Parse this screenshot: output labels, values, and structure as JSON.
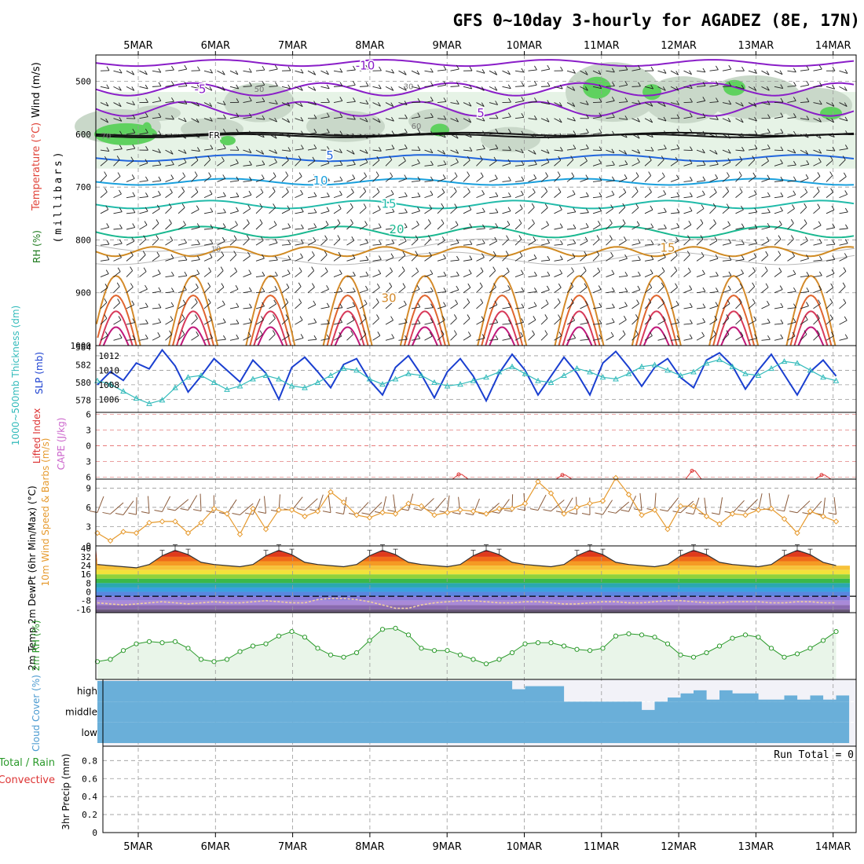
{
  "title": "GFS 0~10day 3-hourly for AGADEZ (8E, 17N)",
  "date_labels": [
    "5MAR",
    "6MAR",
    "7MAR",
    "8MAR",
    "9MAR",
    "10MAR",
    "11MAR",
    "12MAR",
    "13MAR",
    "14MAR"
  ],
  "colors": {
    "frame": "#000000",
    "grid": "#999999",
    "rh_light": "#e6f3e6",
    "rh_mid": "#c9d8c9",
    "rh_dark": "#5fd15f",
    "slp": "#1a3fd0",
    "thickness": "#33bbbb",
    "wind": "#e69a2e",
    "barb": "#8a5a3a",
    "rh2m": "#2b9a2b",
    "rh2m_fill": "#e9f5e9",
    "cloud": "#6aafd9",
    "cloud_clear": "#f2f2f8",
    "li": "#dd3333",
    "cape": "#cc66cc"
  },
  "chart_data": [
    {
      "type": "heatmap",
      "panel": "upper-air",
      "ylabel_parts": [
        "Wind (m/s)",
        "Temperature (°C)",
        "RH (%)"
      ],
      "ylabel_sub": "(millibars)",
      "yticks": [
        500,
        600,
        700,
        800,
        900,
        1000
      ],
      "ylim": [
        450,
        1000
      ],
      "isotherm_labels": [
        {
          "value": "-10",
          "level": 470
        },
        {
          "value": "-5",
          "level": 515
        },
        {
          "value": "5",
          "level": 560
        },
        {
          "value": "FR",
          "level": 600
        },
        {
          "value": "5",
          "level": 640
        },
        {
          "value": "10",
          "level": 688
        },
        {
          "value": "15",
          "level": 732
        },
        {
          "value": "20",
          "level": 780
        },
        {
          "value": "15",
          "level": 815
        },
        {
          "value": "30",
          "level": 910
        }
      ],
      "rh_labels": [
        "30",
        "50",
        "60",
        "70",
        "10"
      ]
    },
    {
      "type": "line",
      "panel": "slp-thickness",
      "ylabel_left": "1000~500mb Thickness (dm)",
      "ylabel_right": "SLP (mb)",
      "yticks_left": [
        578,
        580,
        582,
        584
      ],
      "yticks_right": [
        1006,
        1008,
        1010,
        1012
      ],
      "ylim_right": [
        1004.2,
        1013.4
      ],
      "series": [
        {
          "name": "SLP (mb)",
          "values": [
            1008.0,
            1009.8,
            1008.6,
            1011.0,
            1010.2,
            1012.8,
            1010.6,
            1007.0,
            1009.2,
            1011.6,
            1010.0,
            1008.4,
            1011.4,
            1009.6,
            1006.0,
            1010.4,
            1011.8,
            1009.8,
            1007.6,
            1010.8,
            1011.6,
            1008.6,
            1006.6,
            1010.4,
            1012.0,
            1009.4,
            1006.2,
            1009.8,
            1011.6,
            1009.2,
            1005.8,
            1009.6,
            1012.2,
            1010.0,
            1006.6,
            1009.2,
            1011.8,
            1009.6,
            1006.6,
            1011.0,
            1012.6,
            1010.4,
            1007.8,
            1010.4,
            1011.6,
            1009.0,
            1007.6,
            1011.4,
            1012.4,
            1010.6,
            1007.4,
            1010.0,
            1012.2,
            1009.4,
            1006.6,
            1009.8,
            1011.4,
            1009.2
          ]
        },
        {
          "name": "Thickness (dm)",
          "values": [
            580.2,
            579.8,
            579.0,
            578.2,
            577.6,
            578.0,
            579.4,
            580.6,
            580.8,
            580.0,
            579.2,
            579.6,
            580.4,
            580.8,
            580.4,
            579.6,
            579.4,
            580.0,
            580.8,
            581.6,
            581.4,
            580.4,
            579.8,
            580.4,
            581.0,
            580.8,
            580.0,
            579.6,
            579.8,
            580.2,
            580.6,
            581.2,
            581.8,
            581.0,
            580.2,
            580.0,
            580.8,
            581.6,
            581.2,
            580.6,
            580.4,
            581.0,
            581.8,
            582.0,
            581.4,
            580.8,
            581.2,
            582.2,
            582.6,
            581.8,
            581.0,
            580.8,
            581.6,
            582.4,
            582.2,
            581.4,
            580.6,
            580.2
          ]
        }
      ]
    },
    {
      "type": "line",
      "panel": "stability",
      "ylabel_left": "Lifted Index",
      "ylabel_right": "CAPE (J/kg)",
      "yticks": [
        -6,
        -3,
        0,
        3,
        6
      ],
      "ylim": [
        -6.4,
        6.4
      ],
      "series": [
        {
          "name": "Lifted Index",
          "values": [
            6.8,
            6.8,
            6.8,
            6.8,
            6.8,
            6.8,
            6.8,
            6.8,
            6.8,
            6.8,
            6.8,
            6.8,
            6.8,
            6.8,
            6.8,
            6.8,
            6.8,
            6.8,
            6.8,
            6.8,
            6.8,
            6.8,
            6.8,
            6.8,
            6.8,
            6.8,
            6.8,
            6.8,
            5.5,
            6.8,
            6.8,
            6.8,
            6.8,
            6.8,
            6.8,
            6.8,
            5.6,
            6.8,
            6.8,
            6.8,
            6.8,
            6.8,
            6.8,
            6.8,
            6.8,
            6.8,
            4.8,
            6.8,
            6.8,
            6.8,
            6.8,
            6.8,
            6.8,
            6.8,
            6.8,
            6.8,
            5.6,
            6.8
          ]
        }
      ]
    },
    {
      "type": "line",
      "panel": "10m-wind",
      "ylabel": "10m Wind Speed & Barbs (m/s)",
      "yticks": [
        0,
        3,
        6,
        9
      ],
      "ylim": [
        0,
        10.4
      ],
      "series": [
        {
          "name": "10m Wind Speed",
          "values": [
            2.0,
            0.8,
            2.2,
            2.0,
            3.6,
            3.8,
            3.8,
            2.0,
            3.6,
            5.8,
            5.0,
            1.8,
            5.8,
            2.6,
            5.6,
            5.6,
            4.6,
            5.4,
            8.4,
            6.8,
            4.8,
            4.4,
            5.2,
            5.0,
            6.6,
            6.2,
            4.8,
            5.2,
            5.6,
            5.4,
            5.0,
            5.8,
            5.8,
            6.6,
            10.0,
            8.2,
            5.0,
            6.0,
            6.6,
            7.0,
            10.6,
            8.0,
            4.8,
            5.6,
            2.6,
            6.2,
            6.2,
            4.6,
            3.4,
            5.0,
            4.8,
            5.6,
            5.8,
            4.2,
            2.0,
            5.4,
            4.6,
            3.8
          ]
        }
      ]
    },
    {
      "type": "area",
      "panel": "2m-temp",
      "ylabel": "2m Temp 2m DewPt (6hr Min/Max) (°C)",
      "yticks": [
        -16,
        -8,
        0,
        8,
        16,
        24,
        32,
        40
      ],
      "ylim": [
        -19,
        42
      ],
      "series": [
        {
          "name": "2m Temp",
          "values": [
            25,
            24,
            23,
            22,
            25,
            33,
            38,
            34,
            27,
            25,
            24,
            23,
            25,
            33,
            38,
            34,
            27,
            25,
            24,
            23,
            25,
            33,
            38,
            34,
            27,
            25,
            24,
            23,
            25,
            33,
            38,
            34,
            27,
            25,
            24,
            23,
            25,
            33,
            38,
            34,
            27,
            25,
            24,
            23,
            25,
            33,
            38,
            34,
            27,
            25,
            24,
            23,
            25,
            33,
            38,
            34,
            27,
            24
          ]
        },
        {
          "name": "2m DewPt",
          "values": [
            -10,
            -11,
            -12,
            -11,
            -10,
            -9,
            -10,
            -11,
            -10,
            -9,
            -10,
            -10,
            -9,
            -8,
            -9,
            -10,
            -10,
            -7,
            -6,
            -6,
            -7,
            -9,
            -12,
            -15,
            -15,
            -12,
            -10,
            -9,
            -8,
            -8,
            -9,
            -10,
            -10,
            -9,
            -9,
            -10,
            -11,
            -11,
            -10,
            -9,
            -9,
            -10,
            -10,
            -9,
            -8,
            -8,
            -9,
            -10,
            -10,
            -9,
            -9,
            -9,
            -10,
            -10,
            -9,
            -9,
            -10,
            -10
          ]
        }
      ]
    },
    {
      "type": "line",
      "panel": "2m-rh",
      "ylabel": "2m RH (%)",
      "ylim": [
        0,
        60
      ],
      "series": [
        {
          "name": "2m RH",
          "values": [
            16,
            18,
            26,
            32,
            34,
            33,
            34,
            28,
            18,
            16,
            18,
            25,
            30,
            32,
            39,
            43,
            38,
            28,
            22,
            20,
            24,
            35,
            45,
            46,
            40,
            28,
            26,
            26,
            22,
            18,
            14,
            18,
            24,
            32,
            33,
            33,
            30,
            27,
            26,
            28,
            39,
            41,
            40,
            38,
            32,
            22,
            20,
            24,
            30,
            37,
            40,
            38,
            28,
            20,
            23,
            28,
            35,
            43
          ]
        }
      ]
    },
    {
      "type": "heatmap",
      "panel": "cloud-cover",
      "ylabel": "Cloud Cover (%)",
      "yticklabels": [
        "high",
        "middle",
        "low"
      ],
      "series": [
        {
          "name": "high",
          "values": [
            100,
            100,
            100,
            100,
            100,
            100,
            100,
            100,
            100,
            100,
            100,
            100,
            100,
            100,
            100,
            100,
            100,
            100,
            100,
            100,
            100,
            100,
            100,
            100,
            100,
            100,
            100,
            100,
            100,
            100,
            100,
            100,
            60,
            75,
            75,
            75,
            0,
            0,
            0,
            0,
            0,
            0,
            0,
            0,
            20,
            40,
            55,
            10,
            55,
            40,
            40,
            10,
            10,
            30,
            10,
            30,
            10,
            30
          ]
        },
        {
          "name": "middle",
          "values": [
            100,
            100,
            100,
            100,
            100,
            100,
            100,
            100,
            100,
            100,
            100,
            100,
            100,
            100,
            100,
            100,
            100,
            100,
            100,
            100,
            100,
            100,
            100,
            100,
            100,
            100,
            100,
            100,
            100,
            100,
            100,
            100,
            100,
            100,
            100,
            100,
            100,
            100,
            100,
            100,
            100,
            100,
            60,
            100,
            100,
            100,
            100,
            100,
            100,
            100,
            100,
            100,
            100,
            100,
            100,
            100,
            100,
            100
          ]
        },
        {
          "name": "low",
          "values": [
            100,
            100,
            100,
            100,
            100,
            100,
            100,
            100,
            100,
            100,
            100,
            100,
            100,
            100,
            100,
            100,
            100,
            100,
            100,
            100,
            100,
            100,
            100,
            100,
            100,
            100,
            100,
            100,
            100,
            100,
            100,
            100,
            100,
            100,
            100,
            100,
            100,
            100,
            100,
            100,
            100,
            100,
            100,
            100,
            100,
            100,
            100,
            100,
            100,
            100,
            100,
            100,
            100,
            100,
            100,
            100,
            100,
            100
          ]
        }
      ]
    },
    {
      "type": "bar",
      "panel": "precip",
      "ylabel_left": "Total / Rain",
      "ylabel_right": "Convective",
      "ylabel": "3hr Precip (mm)",
      "yticks": [
        "0",
        "0.2",
        "0.4",
        "0.6",
        "0.8"
      ],
      "ylim": [
        0,
        0.96
      ],
      "run_total": "Run Total = 0",
      "values": [
        0,
        0,
        0,
        0,
        0,
        0,
        0,
        0,
        0,
        0,
        0,
        0,
        0,
        0,
        0,
        0,
        0,
        0,
        0,
        0,
        0,
        0,
        0,
        0,
        0,
        0,
        0,
        0,
        0,
        0,
        0,
        0,
        0,
        0,
        0,
        0,
        0,
        0,
        0,
        0,
        0,
        0,
        0,
        0,
        0,
        0,
        0,
        0,
        0,
        0,
        0,
        0,
        0,
        0,
        0,
        0,
        0,
        0
      ]
    }
  ]
}
